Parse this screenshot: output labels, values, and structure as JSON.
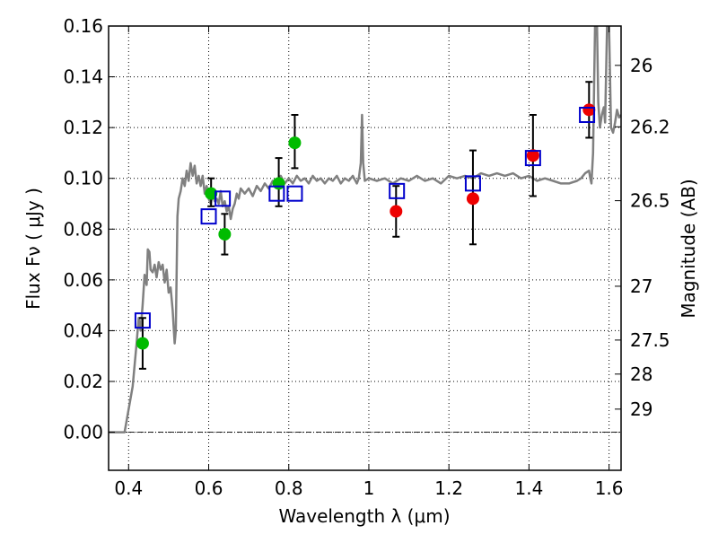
{
  "chart_data": {
    "type": "scatter",
    "title": "",
    "xlabel": "Wavelength  λ (μm)",
    "ylabel": "Flux  Fν  ( μJy )",
    "ylabel_right": "Magnitude (AB)",
    "xlim": [
      0.35,
      1.63
    ],
    "ylim": [
      -0.015,
      0.16
    ],
    "grid": true,
    "x_ticks": [
      0.4,
      0.6,
      0.8,
      1.0,
      1.2,
      1.4,
      1.6
    ],
    "x_tick_labels": [
      "0.4",
      "0.6",
      "0.8",
      "1",
      "1.2",
      "1.4",
      "1.6"
    ],
    "y_ticks": [
      0.0,
      0.02,
      0.04,
      0.06,
      0.08,
      0.1,
      0.12,
      0.14,
      0.16
    ],
    "y_tick_labels": [
      "0.00",
      "0.02",
      "0.04",
      "0.06",
      "0.08",
      "0.10",
      "0.12",
      "0.14",
      "0.16"
    ],
    "right_axis_ticks": [
      {
        "label": "26",
        "flux": 0.1445
      },
      {
        "label": "26.2",
        "flux": 0.1203
      },
      {
        "label": "26.5",
        "flux": 0.0912
      },
      {
        "label": "27",
        "flux": 0.0575
      },
      {
        "label": "27.5",
        "flux": 0.0363
      },
      {
        "label": "28",
        "flux": 0.0229
      },
      {
        "label": "29",
        "flux": 0.0091
      }
    ],
    "model_spectrum": {
      "color": "#808080",
      "points": [
        [
          0.35,
          0.0
        ],
        [
          0.38,
          0.0
        ],
        [
          0.39,
          0.0
        ],
        [
          0.41,
          0.018
        ],
        [
          0.42,
          0.035
        ],
        [
          0.425,
          0.045
        ],
        [
          0.43,
          0.04
        ],
        [
          0.435,
          0.05
        ],
        [
          0.44,
          0.062
        ],
        [
          0.445,
          0.058
        ],
        [
          0.448,
          0.072
        ],
        [
          0.452,
          0.071
        ],
        [
          0.455,
          0.064
        ],
        [
          0.46,
          0.063
        ],
        [
          0.465,
          0.066
        ],
        [
          0.47,
          0.061
        ],
        [
          0.475,
          0.067
        ],
        [
          0.48,
          0.064
        ],
        [
          0.485,
          0.066
        ],
        [
          0.49,
          0.059
        ],
        [
          0.495,
          0.064
        ],
        [
          0.5,
          0.055
        ],
        [
          0.505,
          0.057
        ],
        [
          0.51,
          0.048
        ],
        [
          0.515,
          0.035
        ],
        [
          0.518,
          0.04
        ],
        [
          0.522,
          0.085
        ],
        [
          0.525,
          0.092
        ],
        [
          0.53,
          0.095
        ],
        [
          0.535,
          0.1
        ],
        [
          0.54,
          0.097
        ],
        [
          0.545,
          0.103
        ],
        [
          0.55,
          0.099
        ],
        [
          0.555,
          0.106
        ],
        [
          0.56,
          0.101
        ],
        [
          0.565,
          0.105
        ],
        [
          0.57,
          0.098
        ],
        [
          0.575,
          0.101
        ],
        [
          0.58,
          0.097
        ],
        [
          0.585,
          0.101
        ],
        [
          0.59,
          0.094
        ],
        [
          0.595,
          0.097
        ],
        [
          0.6,
          0.092
        ],
        [
          0.605,
          0.09
        ],
        [
          0.61,
          0.094
        ],
        [
          0.615,
          0.091
        ],
        [
          0.62,
          0.092
        ],
        [
          0.625,
          0.09
        ],
        [
          0.63,
          0.095
        ],
        [
          0.635,
          0.089
        ],
        [
          0.64,
          0.091
        ],
        [
          0.645,
          0.087
        ],
        [
          0.65,
          0.089
        ],
        [
          0.655,
          0.084
        ],
        [
          0.66,
          0.088
        ],
        [
          0.665,
          0.09
        ],
        [
          0.67,
          0.094
        ],
        [
          0.675,
          0.092
        ],
        [
          0.68,
          0.096
        ],
        [
          0.69,
          0.094
        ],
        [
          0.7,
          0.096
        ],
        [
          0.71,
          0.093
        ],
        [
          0.72,
          0.097
        ],
        [
          0.73,
          0.095
        ],
        [
          0.74,
          0.098
        ],
        [
          0.75,
          0.096
        ],
        [
          0.76,
          0.099
        ],
        [
          0.77,
          0.097
        ],
        [
          0.78,
          0.101
        ],
        [
          0.79,
          0.098
        ],
        [
          0.8,
          0.1
        ],
        [
          0.81,
          0.098
        ],
        [
          0.82,
          0.101
        ],
        [
          0.83,
          0.099
        ],
        [
          0.84,
          0.1
        ],
        [
          0.85,
          0.098
        ],
        [
          0.86,
          0.101
        ],
        [
          0.87,
          0.099
        ],
        [
          0.88,
          0.1
        ],
        [
          0.89,
          0.098
        ],
        [
          0.9,
          0.1
        ],
        [
          0.91,
          0.099
        ],
        [
          0.92,
          0.101
        ],
        [
          0.93,
          0.098
        ],
        [
          0.94,
          0.1
        ],
        [
          0.95,
          0.099
        ],
        [
          0.96,
          0.101
        ],
        [
          0.97,
          0.098
        ],
        [
          0.975,
          0.1
        ],
        [
          0.98,
          0.106
        ],
        [
          0.983,
          0.125
        ],
        [
          0.986,
          0.106
        ],
        [
          0.99,
          0.099
        ],
        [
          1.0,
          0.1
        ],
        [
          1.02,
          0.099
        ],
        [
          1.04,
          0.1
        ],
        [
          1.06,
          0.098
        ],
        [
          1.08,
          0.1
        ],
        [
          1.1,
          0.099
        ],
        [
          1.12,
          0.101
        ],
        [
          1.14,
          0.099
        ],
        [
          1.16,
          0.1
        ],
        [
          1.18,
          0.098
        ],
        [
          1.2,
          0.101
        ],
        [
          1.22,
          0.1
        ],
        [
          1.24,
          0.101
        ],
        [
          1.26,
          0.1
        ],
        [
          1.28,
          0.102
        ],
        [
          1.3,
          0.101
        ],
        [
          1.32,
          0.102
        ],
        [
          1.34,
          0.101
        ],
        [
          1.36,
          0.102
        ],
        [
          1.38,
          0.1
        ],
        [
          1.4,
          0.101
        ],
        [
          1.42,
          0.099
        ],
        [
          1.44,
          0.1
        ],
        [
          1.46,
          0.099
        ],
        [
          1.48,
          0.098
        ],
        [
          1.5,
          0.098
        ],
        [
          1.52,
          0.099
        ],
        [
          1.53,
          0.1
        ],
        [
          1.54,
          0.102
        ],
        [
          1.55,
          0.103
        ],
        [
          1.553,
          0.1
        ],
        [
          1.556,
          0.098
        ],
        [
          1.56,
          0.11
        ],
        [
          1.565,
          0.16
        ],
        [
          1.57,
          0.16
        ],
        [
          1.573,
          0.13
        ],
        [
          1.577,
          0.12
        ],
        [
          1.582,
          0.125
        ],
        [
          1.587,
          0.128
        ],
        [
          1.59,
          0.122
        ],
        [
          1.595,
          0.16
        ],
        [
          1.6,
          0.16
        ],
        [
          1.605,
          0.12
        ],
        [
          1.61,
          0.118
        ],
        [
          1.615,
          0.122
        ],
        [
          1.62,
          0.127
        ],
        [
          1.625,
          0.124
        ],
        [
          1.63,
          0.125
        ]
      ]
    },
    "model_photometry": {
      "marker": "open-square",
      "color": "#0000cc",
      "points": [
        [
          0.435,
          0.044
        ],
        [
          0.6,
          0.085
        ],
        [
          0.635,
          0.092
        ],
        [
          0.77,
          0.094
        ],
        [
          0.815,
          0.094
        ],
        [
          1.07,
          0.095
        ],
        [
          1.26,
          0.098
        ],
        [
          1.41,
          0.108
        ],
        [
          1.545,
          0.125
        ]
      ]
    },
    "observed_optical": {
      "marker": "filled-circle",
      "color": "#00bb00",
      "points": [
        [
          0.435,
          0.035
        ],
        [
          0.606,
          0.094
        ],
        [
          0.64,
          0.078
        ],
        [
          0.775,
          0.098
        ],
        [
          0.815,
          0.114
        ]
      ],
      "errors": [
        {
          "x": 0.435,
          "lo": 0.025,
          "hi": 0.045
        },
        {
          "x": 0.606,
          "lo": 0.089,
          "hi": 0.1
        },
        {
          "x": 0.64,
          "lo": 0.07,
          "hi": 0.086
        },
        {
          "x": 0.775,
          "lo": 0.089,
          "hi": 0.108
        },
        {
          "x": 0.815,
          "lo": 0.104,
          "hi": 0.125
        }
      ]
    },
    "observed_nir": {
      "marker": "filled-circle",
      "color": "#ee0000",
      "points": [
        [
          1.068,
          0.087
        ],
        [
          1.26,
          0.092
        ],
        [
          1.41,
          0.109
        ],
        [
          1.55,
          0.127
        ]
      ],
      "errors": [
        {
          "x": 1.068,
          "lo": 0.077,
          "hi": 0.097
        },
        {
          "x": 1.26,
          "lo": 0.074,
          "hi": 0.111
        },
        {
          "x": 1.41,
          "lo": 0.093,
          "hi": 0.125
        },
        {
          "x": 1.55,
          "lo": 0.116,
          "hi": 0.138
        }
      ]
    }
  }
}
